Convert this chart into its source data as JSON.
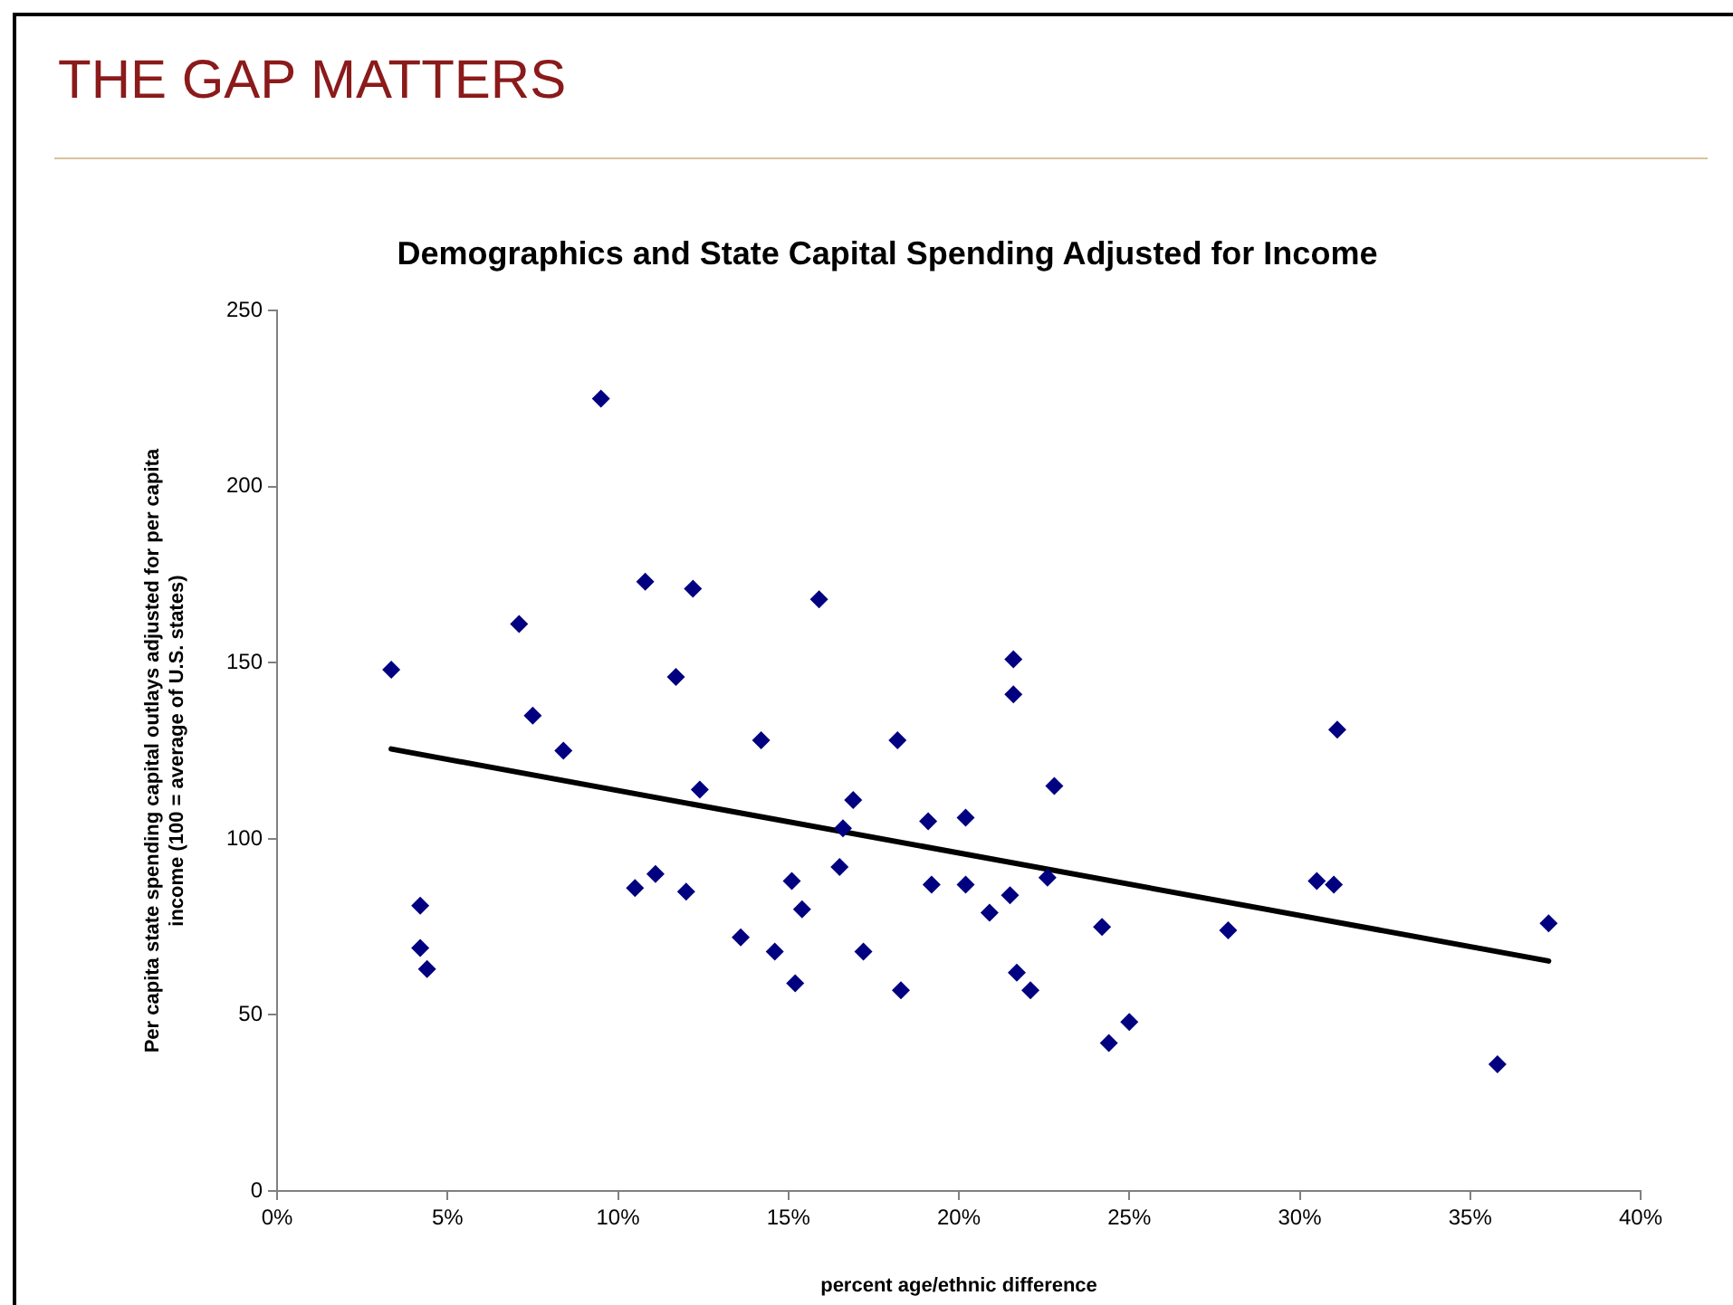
{
  "chart_data": {
    "type": "scatter",
    "title": "Demographics and State Capital Spending Adjusted for Income",
    "xlabel": "percent age/ethnic difference",
    "ylabel": "Per capita state spending capital outlays adjusted for per capita income (100 = average of U.S. states)",
    "annotations": [
      "THE GAP MATTERS"
    ],
    "xlim": [
      0,
      40
    ],
    "xticks": [
      {
        "value": 0,
        "label": "0%"
      },
      {
        "value": 5,
        "label": "5%"
      },
      {
        "value": 10,
        "label": "10%"
      },
      {
        "value": 15,
        "label": "15%"
      },
      {
        "value": 20,
        "label": "20%"
      },
      {
        "value": 25,
        "label": "25%"
      },
      {
        "value": 30,
        "label": "30%"
      },
      {
        "value": 35,
        "label": "35%"
      },
      {
        "value": 40,
        "label": "40%"
      }
    ],
    "ylim": [
      0,
      250
    ],
    "yticks": [
      0,
      50,
      100,
      150,
      200,
      250
    ],
    "grid": false,
    "legend": false,
    "marker": "diamond",
    "series": [
      {
        "color": "#000080",
        "x": [
          3.35,
          4.2,
          4.2,
          4.4,
          7.1,
          7.5,
          8.4,
          9.5,
          10.5,
          10.8,
          11.1,
          11.7,
          12.0,
          12.2,
          12.4,
          13.6,
          14.2,
          14.6,
          15.1,
          15.2,
          15.4,
          15.9,
          16.5,
          16.6,
          16.9,
          17.2,
          18.2,
          18.3,
          19.1,
          19.2,
          20.2,
          20.2,
          20.9,
          21.5,
          21.6,
          21.6,
          21.7,
          22.1,
          22.6,
          22.8,
          24.2,
          24.4,
          25.0,
          27.9,
          30.5,
          31.0,
          31.1,
          35.8,
          37.3
        ],
        "values": [
          148,
          81,
          69,
          63,
          161,
          135,
          125,
          225,
          86,
          173,
          90,
          146,
          85,
          171,
          114,
          72,
          128,
          68,
          88,
          59,
          80,
          168,
          92,
          103,
          111,
          68,
          128,
          57,
          105,
          87,
          106,
          87,
          79,
          84,
          151,
          141,
          62,
          57,
          89,
          115,
          75,
          42,
          48,
          74,
          88,
          87,
          131,
          36,
          76
        ]
      },
      {
        "type": "line",
        "color": "#000000",
        "marker": "none",
        "x": [
          3.35,
          37.3
        ],
        "values": [
          125.5,
          65.3
        ]
      }
    ]
  }
}
